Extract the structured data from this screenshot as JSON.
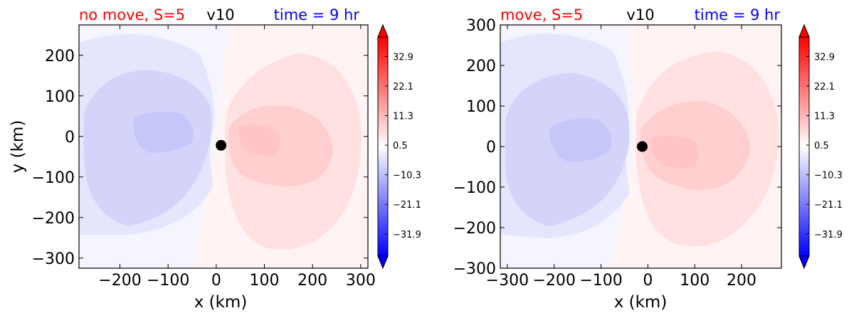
{
  "colorbar": {
    "tick_labels": [
      "32.9",
      "22.1",
      "11.3",
      "0.5",
      "−10.3",
      "−21.1",
      "−31.9"
    ],
    "tick_values": [
      32.9,
      22.1,
      11.3,
      0.5,
      -10.3,
      -21.1,
      -31.9
    ],
    "range": [
      -40,
      40
    ],
    "extend": "both",
    "colormap": "bwr"
  },
  "colors": {
    "title_left": "#ff0000",
    "title_center": "#000000",
    "title_right": "#0000ff",
    "positive_max": "#ff0000",
    "negative_max": "#0000ff",
    "center_marker": "#000000"
  },
  "chart_data": [
    {
      "type": "heatmap",
      "title_left": "no move, S=5",
      "title_center": "v10",
      "title_right": "time = 9 hr",
      "xlabel": "x (km)",
      "ylabel": "y (km)",
      "xlim": [
        -285,
        315
      ],
      "ylim": [
        -325,
        275
      ],
      "xticks": [
        -200,
        -100,
        0,
        100,
        200,
        300
      ],
      "yticks": [
        -300,
        -200,
        -100,
        0,
        100,
        200
      ],
      "xtick_labels": [
        "−200",
        "−100",
        "0",
        "100",
        "200",
        "300"
      ],
      "ytick_labels": [
        "−300",
        "−200",
        "−100",
        "0",
        "100",
        "200"
      ],
      "center_marker": {
        "x": 10,
        "y": -22
      },
      "negative_lobe": {
        "center_x": -140,
        "center_y": 10,
        "min_value": -12
      },
      "positive_lobe": {
        "center_x": 110,
        "center_y": -10,
        "max_value": 12
      }
    },
    {
      "type": "heatmap",
      "title_left": "move, S=5",
      "title_center": "v10",
      "title_right": "time = 9 hr",
      "xlabel": "x (km)",
      "ylabel": "",
      "xlim": [
        -315,
        285
      ],
      "ylim": [
        -300,
        300
      ],
      "xticks": [
        -300,
        -200,
        -100,
        0,
        100,
        200
      ],
      "yticks": [
        -300,
        -200,
        -100,
        0,
        100,
        200,
        300
      ],
      "xtick_labels": [
        "−300",
        "−200",
        "−100",
        "0",
        "100",
        "200"
      ],
      "ytick_labels": [
        "−300",
        "−200",
        "−100",
        "0",
        "100",
        "200",
        "300"
      ],
      "center_marker": {
        "x": -12,
        "y": 0
      },
      "negative_lobe": {
        "center_x": -170,
        "center_y": 10,
        "min_value": -12
      },
      "positive_lobe": {
        "center_x": 80,
        "center_y": 0,
        "max_value": 12
      }
    }
  ]
}
